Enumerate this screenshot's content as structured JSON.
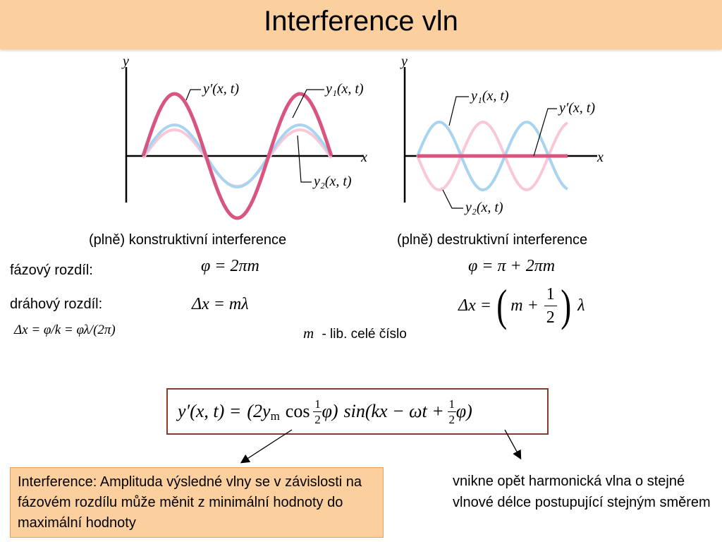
{
  "title": "Interference vln",
  "plot_left": {
    "axis_y": "y",
    "axis_x": "x",
    "label_resultant": "y′(x, t)",
    "label_y1": "y₁(x, t)",
    "label_y2": "y₂(x, t)",
    "caption": "(plně) konstruktivní interference"
  },
  "plot_right": {
    "axis_y": "y",
    "axis_x": "x",
    "label_resultant": "y′(x, t)",
    "label_y1": "y₁(x, t)",
    "label_y2": "y₂(x, t)",
    "caption": "(plně) destruktivní interference"
  },
  "rows": {
    "phase_label": "fázový rozdíl:",
    "phase_constructive": "φ = 2πm",
    "phase_destructive": "φ = π + 2πm",
    "path_label": "dráhový rozdíl:",
    "path_constructive": "Δx = mλ",
    "path_destructive_prefix": "Δx =",
    "path_destructive_m": "m +",
    "path_destructive_num": "1",
    "path_destructive_den": "2",
    "path_destructive_suffix": "λ",
    "path_relation": "Δx = φ/k = φλ/(2π)",
    "m_symbol": "m",
    "m_note": "- lib. celé číslo"
  },
  "formula": {
    "lhs": "y′(x, t) =",
    "amp": "(2y",
    "amp_sub": "m",
    "cos": "cos",
    "half": "1",
    "half_den": "2",
    "phi1": "φ)",
    "sin": "sin(kx − ωt +",
    "half2": "1",
    "half2_den": "2",
    "phi2": "φ)"
  },
  "callouts": {
    "amplitude_note": "Interference: Amplituda výsledné vlny se v závislosti na fázovém rozdílu může měnit z minimální hodnoty do maximální hodnoty",
    "wave_note": "vnikne opět harmonická vlna o stejné vlnové délce postupující stejným směrem"
  },
  "colors": {
    "title_bg": "#fccf9f",
    "resultant": "#d9557f",
    "y1": "#a8d4f0",
    "y2": "#f8c8d8",
    "formula_border": "#8b3a2a"
  }
}
